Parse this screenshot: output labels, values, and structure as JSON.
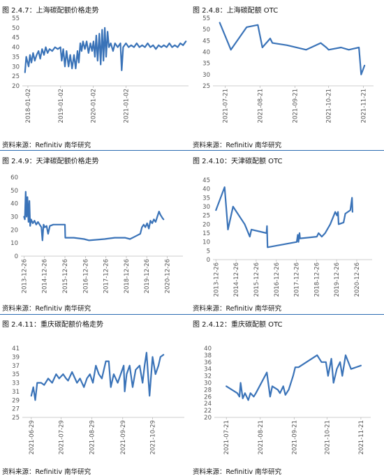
{
  "panels": [
    {
      "title": "图 2.4.7：上海碳配额价格走势",
      "source": "资料来源：Refinitiv 南华研究"
    },
    {
      "title": "图 2.4.8：上海碳配额 OTC",
      "source": "资料来源：Refinitiv 南华研究"
    },
    {
      "title": "图 2.4.9：天津碳配额价格走势",
      "source": "资料来源：Refinitiv 南华研究"
    },
    {
      "title": "图 2.4.10：天津碳配额 OTC",
      "source": "资料来源：Refinitiv 南华研究"
    },
    {
      "title": "图 2.4.11：重庆碳配额价格走势",
      "source": "资料来源：Refinitiv 南华研究"
    },
    {
      "title": "图 2.4.12：重庆碳配额 OTC",
      "source": "资料来源：Refinitiv 南华研究"
    }
  ],
  "chart_data": [
    {
      "type": "line",
      "title": "图 2.4.7：上海碳配额价格走势",
      "color": "#3a73b8",
      "ylim": [
        20,
        55
      ],
      "yticks": [
        20,
        25,
        30,
        35,
        40,
        45,
        50,
        55
      ],
      "xlim": [
        "2017-11-01",
        "2022-12-01"
      ],
      "xticks": [
        "2018-01-02",
        "2019-01-02",
        "2020-01-02",
        "2021-01-02"
      ],
      "points": [
        [
          "2017-12-01",
          27
        ],
        [
          "2017-12-15",
          35
        ],
        [
          "2018-01-10",
          30
        ],
        [
          "2018-01-25",
          36
        ],
        [
          "2018-02-10",
          32
        ],
        [
          "2018-03-01",
          37
        ],
        [
          "2018-03-20",
          33
        ],
        [
          "2018-04-10",
          36
        ],
        [
          "2018-05-01",
          38
        ],
        [
          "2018-05-20",
          34
        ],
        [
          "2018-06-10",
          39
        ],
        [
          "2018-07-01",
          36
        ],
        [
          "2018-07-20",
          40
        ],
        [
          "2018-08-10",
          37
        ],
        [
          "2018-09-01",
          39
        ],
        [
          "2018-10-01",
          38
        ],
        [
          "2018-11-01",
          40
        ],
        [
          "2018-12-01",
          39
        ],
        [
          "2019-01-01",
          40
        ],
        [
          "2019-01-15",
          33
        ],
        [
          "2019-02-01",
          39
        ],
        [
          "2019-02-20",
          30
        ],
        [
          "2019-03-10",
          38
        ],
        [
          "2019-04-01",
          30
        ],
        [
          "2019-04-20",
          36
        ],
        [
          "2019-05-10",
          29
        ],
        [
          "2019-06-01",
          36
        ],
        [
          "2019-06-20",
          29
        ],
        [
          "2019-07-10",
          38
        ],
        [
          "2019-07-25",
          32
        ],
        [
          "2019-08-10",
          42
        ],
        [
          "2019-08-25",
          38
        ],
        [
          "2019-09-10",
          43
        ],
        [
          "2019-10-01",
          39
        ],
        [
          "2019-10-20",
          43
        ],
        [
          "2019-11-10",
          37
        ],
        [
          "2019-12-01",
          42
        ],
        [
          "2019-12-20",
          38
        ],
        [
          "2020-01-05",
          43
        ],
        [
          "2020-01-20",
          35
        ],
        [
          "2020-02-05",
          46
        ],
        [
          "2020-02-20",
          33
        ],
        [
          "2020-03-10",
          47
        ],
        [
          "2020-03-25",
          31
        ],
        [
          "2020-04-10",
          49
        ],
        [
          "2020-04-25",
          33
        ],
        [
          "2020-05-10",
          50
        ],
        [
          "2020-05-25",
          35
        ],
        [
          "2020-06-10",
          48
        ],
        [
          "2020-06-25",
          40
        ],
        [
          "2020-07-15",
          42
        ],
        [
          "2020-08-10",
          38
        ],
        [
          "2020-09-01",
          42
        ],
        [
          "2020-10-01",
          40
        ],
        [
          "2020-11-01",
          42
        ],
        [
          "2020-11-15",
          28
        ],
        [
          "2020-12-01",
          40
        ],
        [
          "2021-01-01",
          42
        ],
        [
          "2021-02-01",
          40
        ],
        [
          "2021-03-01",
          41
        ],
        [
          "2021-04-01",
          40
        ],
        [
          "2021-05-01",
          42
        ],
        [
          "2021-06-01",
          40
        ],
        [
          "2021-07-01",
          41
        ],
        [
          "2021-08-01",
          40
        ],
        [
          "2021-09-01",
          42
        ],
        [
          "2021-10-01",
          40
        ],
        [
          "2021-11-01",
          41
        ],
        [
          "2021-12-01",
          39
        ],
        [
          "2022-01-01",
          41
        ],
        [
          "2022-02-01",
          40
        ],
        [
          "2022-03-01",
          41
        ],
        [
          "2022-04-01",
          40
        ],
        [
          "2022-05-01",
          42
        ],
        [
          "2022-06-01",
          40
        ],
        [
          "2022-07-01",
          41
        ],
        [
          "2022-08-01",
          40
        ],
        [
          "2022-09-01",
          42
        ],
        [
          "2022-10-01",
          41
        ],
        [
          "2022-11-01",
          43
        ]
      ]
    },
    {
      "type": "line",
      "title": "图 2.4.8：上海碳配额 OTC",
      "color": "#3a73b8",
      "ylim": [
        25,
        55
      ],
      "yticks": [
        25,
        30,
        35,
        40,
        45,
        50,
        55
      ],
      "xlim": [
        "2021-07-10",
        "2021-11-30"
      ],
      "xticks": [
        "2021-07-21",
        "2021-08-21",
        "2021-09-21",
        "2021-10-21",
        "2021-11-21"
      ],
      "points": [
        [
          "2021-07-16",
          53
        ],
        [
          "2021-07-26",
          41
        ],
        [
          "2021-08-09",
          51
        ],
        [
          "2021-08-19",
          52
        ],
        [
          "2021-08-23",
          42
        ],
        [
          "2021-08-30",
          46
        ],
        [
          "2021-09-01",
          44
        ],
        [
          "2021-09-14",
          43
        ],
        [
          "2021-10-01",
          41
        ],
        [
          "2021-10-14",
          44
        ],
        [
          "2021-10-19",
          42
        ],
        [
          "2021-10-21",
          41
        ],
        [
          "2021-11-01",
          42
        ],
        [
          "2021-11-08",
          41
        ],
        [
          "2021-11-17",
          42
        ],
        [
          "2021-11-19",
          30
        ],
        [
          "2021-11-22",
          34
        ]
      ]
    },
    {
      "type": "line",
      "title": "图 2.4.9：天津碳配额价格走势",
      "color": "#3a73b8",
      "ylim": [
        0,
        60
      ],
      "yticks": [
        0,
        10,
        20,
        30,
        40,
        50,
        60
      ],
      "xlim": [
        "2013-11-01",
        "2021-10-01"
      ],
      "xticks": [
        "2013-12-26",
        "2014-12-26",
        "2015-12-26",
        "2016-12-26",
        "2017-12-26",
        "2018-12-26",
        "2019-12-26",
        "2020-12-26"
      ],
      "points": [
        [
          "2013-12-26",
          30
        ],
        [
          "2014-01-10",
          28
        ],
        [
          "2014-01-25",
          49
        ],
        [
          "2014-02-10",
          30
        ],
        [
          "2014-02-25",
          45
        ],
        [
          "2014-03-15",
          26
        ],
        [
          "2014-04-01",
          42
        ],
        [
          "2014-04-15",
          23
        ],
        [
          "2014-05-01",
          28
        ],
        [
          "2014-06-01",
          25
        ],
        [
          "2014-07-01",
          27
        ],
        [
          "2014-08-01",
          24
        ],
        [
          "2014-09-01",
          26
        ],
        [
          "2014-10-01",
          24
        ],
        [
          "2014-11-01",
          22
        ],
        [
          "2014-11-20",
          12
        ],
        [
          "2014-12-10",
          24
        ],
        [
          "2015-01-01",
          22
        ],
        [
          "2015-02-01",
          23
        ],
        [
          "2015-03-01",
          17
        ],
        [
          "2015-04-01",
          23
        ],
        [
          "2015-06-01",
          24
        ],
        [
          "2015-09-01",
          24
        ],
        [
          "2015-12-26",
          24
        ],
        [
          "2016-01-01",
          14
        ],
        [
          "2016-06-01",
          14
        ],
        [
          "2016-12-01",
          13
        ],
        [
          "2017-03-01",
          12
        ],
        [
          "2017-12-01",
          13
        ],
        [
          "2018-06-01",
          14
        ],
        [
          "2018-12-01",
          14
        ],
        [
          "2019-03-01",
          13
        ],
        [
          "2019-06-01",
          15
        ],
        [
          "2019-09-01",
          17
        ],
        [
          "2019-10-01",
          22
        ],
        [
          "2019-11-01",
          24
        ],
        [
          "2019-12-01",
          22
        ],
        [
          "2020-01-01",
          25
        ],
        [
          "2020-02-01",
          21
        ],
        [
          "2020-03-01",
          27
        ],
        [
          "2020-04-01",
          25
        ],
        [
          "2020-05-01",
          28
        ],
        [
          "2020-06-01",
          26
        ],
        [
          "2020-07-01",
          30
        ],
        [
          "2020-08-01",
          34
        ],
        [
          "2020-08-20",
          32
        ],
        [
          "2020-09-01",
          31
        ],
        [
          "2020-10-01",
          29
        ],
        [
          "2020-10-20",
          28
        ]
      ]
    },
    {
      "type": "line",
      "title": "图 2.4.10：天津碳配额 OTC",
      "color": "#3a73b8",
      "ylim": [
        0,
        45
      ],
      "yticks": [
        0,
        5,
        10,
        15,
        20,
        25,
        30,
        35,
        40,
        45
      ],
      "xlim": [
        "2013-11-01",
        "2021-10-01"
      ],
      "xticks": [
        "2013-12-26",
        "2014-12-26",
        "2015-12-26",
        "2016-12-26",
        "2017-12-26",
        "2018-12-26",
        "2019-12-26",
        "2020-12-26"
      ],
      "points": [
        [
          "2013-12-26",
          28
        ],
        [
          "2014-06-01",
          41
        ],
        [
          "2014-08-01",
          17
        ],
        [
          "2014-11-01",
          30
        ],
        [
          "2015-06-01",
          20
        ],
        [
          "2015-09-01",
          13
        ],
        [
          "2015-10-01",
          17
        ],
        [
          "2016-07-01",
          15
        ],
        [
          "2016-07-10",
          19
        ],
        [
          "2016-07-20",
          7
        ],
        [
          "2018-01-01",
          10
        ],
        [
          "2018-01-20",
          14
        ],
        [
          "2018-02-01",
          10
        ],
        [
          "2018-02-20",
          15
        ],
        [
          "2018-03-01",
          12
        ],
        [
          "2019-01-01",
          13
        ],
        [
          "2019-02-01",
          15
        ],
        [
          "2019-04-01",
          13
        ],
        [
          "2019-06-01",
          15
        ],
        [
          "2019-09-01",
          20
        ],
        [
          "2019-12-01",
          27
        ],
        [
          "2020-01-01",
          25
        ],
        [
          "2020-01-20",
          27
        ],
        [
          "2020-02-01",
          20
        ],
        [
          "2020-05-01",
          21
        ],
        [
          "2020-06-01",
          26
        ],
        [
          "2020-09-01",
          28
        ],
        [
          "2020-10-01",
          35
        ],
        [
          "2020-10-10",
          27
        ]
      ]
    },
    {
      "type": "line",
      "title": "图 2.4.11：重庆碳配额价格走势",
      "color": "#3a73b8",
      "ylim": [
        25,
        41
      ],
      "yticks": [
        25,
        27,
        29,
        31,
        33,
        35,
        37,
        39,
        41
      ],
      "xlim": [
        "2021-06-20",
        "2021-11-30"
      ],
      "xticks": [
        "2021-06-29",
        "2021-07-29",
        "2021-08-29",
        "2021-09-29",
        "2021-10-29"
      ],
      "points": [
        [
          "2021-06-29",
          30
        ],
        [
          "2021-07-01",
          32
        ],
        [
          "2021-07-03",
          29
        ],
        [
          "2021-07-05",
          33
        ],
        [
          "2021-07-09",
          33
        ],
        [
          "2021-07-12",
          32.5
        ],
        [
          "2021-07-16",
          34
        ],
        [
          "2021-07-20",
          33
        ],
        [
          "2021-07-24",
          35
        ],
        [
          "2021-07-27",
          34
        ],
        [
          "2021-07-31",
          35
        ],
        [
          "2021-08-03",
          34
        ],
        [
          "2021-08-05",
          33.5
        ],
        [
          "2021-08-09",
          35.5
        ],
        [
          "2021-08-14",
          33
        ],
        [
          "2021-08-17",
          34
        ],
        [
          "2021-08-21",
          32
        ],
        [
          "2021-08-24",
          34
        ],
        [
          "2021-08-27",
          35
        ],
        [
          "2021-08-30",
          33
        ],
        [
          "2021-09-02",
          37
        ],
        [
          "2021-09-05",
          35
        ],
        [
          "2021-09-08",
          34
        ],
        [
          "2021-09-12",
          38
        ],
        [
          "2021-09-15",
          38
        ],
        [
          "2021-09-17",
          32
        ],
        [
          "2021-09-20",
          35
        ],
        [
          "2021-09-24",
          33
        ],
        [
          "2021-09-27",
          35
        ],
        [
          "2021-09-30",
          37
        ],
        [
          "2021-10-01",
          31
        ],
        [
          "2021-10-03",
          35
        ],
        [
          "2021-10-06",
          37
        ],
        [
          "2021-10-09",
          32
        ],
        [
          "2021-10-12",
          36
        ],
        [
          "2021-10-16",
          37
        ],
        [
          "2021-10-19",
          33
        ],
        [
          "2021-10-21",
          37
        ],
        [
          "2021-10-23",
          40
        ],
        [
          "2021-10-26",
          30
        ],
        [
          "2021-10-29",
          39
        ],
        [
          "2021-11-01",
          35
        ],
        [
          "2021-11-04",
          37
        ],
        [
          "2021-11-06",
          39
        ],
        [
          "2021-11-09",
          39.5
        ]
      ]
    },
    {
      "type": "line",
      "title": "图 2.4.12：重庆碳配额 OTC",
      "color": "#3a73b8",
      "ylim": [
        20,
        40
      ],
      "yticks": [
        20,
        22,
        24,
        26,
        28,
        30,
        32,
        34,
        36,
        38,
        40
      ],
      "xlim": [
        "2021-07-10",
        "2021-11-30"
      ],
      "xticks": [
        "2021-07-21",
        "2021-08-21",
        "2021-09-21",
        "2021-10-21",
        "2021-11-21"
      ],
      "points": [
        [
          "2021-07-21",
          29
        ],
        [
          "2021-07-31",
          27
        ],
        [
          "2021-08-02",
          26
        ],
        [
          "2021-08-03",
          30
        ],
        [
          "2021-08-05",
          25.5
        ],
        [
          "2021-08-07",
          27
        ],
        [
          "2021-08-10",
          25
        ],
        [
          "2021-08-12",
          27
        ],
        [
          "2021-08-15",
          26
        ],
        [
          "2021-08-17",
          27
        ],
        [
          "2021-08-27",
          33
        ],
        [
          "2021-08-30",
          26
        ],
        [
          "2021-09-01",
          29
        ],
        [
          "2021-09-06",
          28
        ],
        [
          "2021-09-08",
          27
        ],
        [
          "2021-09-11",
          29
        ],
        [
          "2021-09-13",
          26.5
        ],
        [
          "2021-09-16",
          28
        ],
        [
          "2021-09-20",
          32
        ],
        [
          "2021-09-22",
          34.5
        ],
        [
          "2021-09-25",
          34.5
        ],
        [
          "2021-10-12",
          38
        ],
        [
          "2021-10-16",
          36
        ],
        [
          "2021-10-20",
          36
        ],
        [
          "2021-10-22",
          32
        ],
        [
          "2021-10-25",
          37
        ],
        [
          "2021-10-27",
          30
        ],
        [
          "2021-10-30",
          34
        ],
        [
          "2021-11-02",
          36
        ],
        [
          "2021-11-04",
          32
        ],
        [
          "2021-11-07",
          38
        ],
        [
          "2021-11-12",
          34
        ],
        [
          "2021-11-21",
          35
        ]
      ]
    }
  ]
}
